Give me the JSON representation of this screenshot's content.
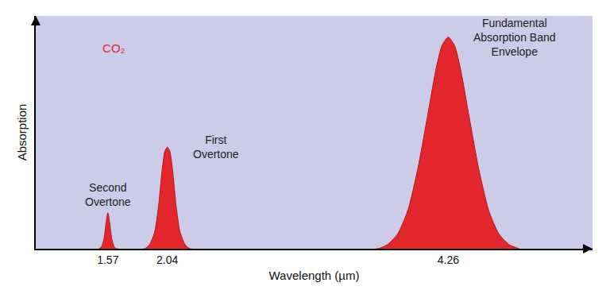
{
  "chart_data": {
    "type": "area",
    "title": "CO₂",
    "x_label": "Wavelength (µm)",
    "y_label": "Absorption",
    "x": [
      1.5,
      1.52,
      1.54,
      1.555,
      1.57,
      1.585,
      1.6,
      1.62,
      1.64,
      1.86,
      1.9,
      1.94,
      1.97,
      2.0,
      2.02,
      2.04,
      2.06,
      2.08,
      2.11,
      2.14,
      2.18,
      2.22,
      3.7,
      3.78,
      3.86,
      3.94,
      4.02,
      4.1,
      4.16,
      4.21,
      4.26,
      4.31,
      4.36,
      4.42,
      4.5,
      4.58,
      4.66,
      4.74,
      4.82
    ],
    "values": [
      0,
      0.01,
      0.05,
      0.12,
      0.17,
      0.12,
      0.05,
      0.01,
      0,
      0,
      0.02,
      0.08,
      0.2,
      0.38,
      0.46,
      0.48,
      0.46,
      0.38,
      0.2,
      0.08,
      0.02,
      0,
      0,
      0.02,
      0.07,
      0.18,
      0.38,
      0.64,
      0.84,
      0.96,
      1.0,
      0.96,
      0.84,
      0.64,
      0.38,
      0.18,
      0.07,
      0.02,
      0
    ],
    "color": "#e3262b",
    "xlim": [
      1.0,
      5.4
    ],
    "xticks": [
      1.57,
      2.04,
      4.26
    ],
    "ylim": [
      0,
      1.1
    ],
    "yticks": [],
    "tick_labels": "x",
    "grid": false,
    "annotations": [
      {
        "text": "Second\nOvertone",
        "x": 1.57,
        "y": 0.17
      },
      {
        "text": "First\nOvertone",
        "x": 2.04,
        "y": 0.48
      },
      {
        "text": "Fundamental\nAbsorption Band\nEnvelope",
        "x": 4.26,
        "y": 1.0
      }
    ]
  }
}
